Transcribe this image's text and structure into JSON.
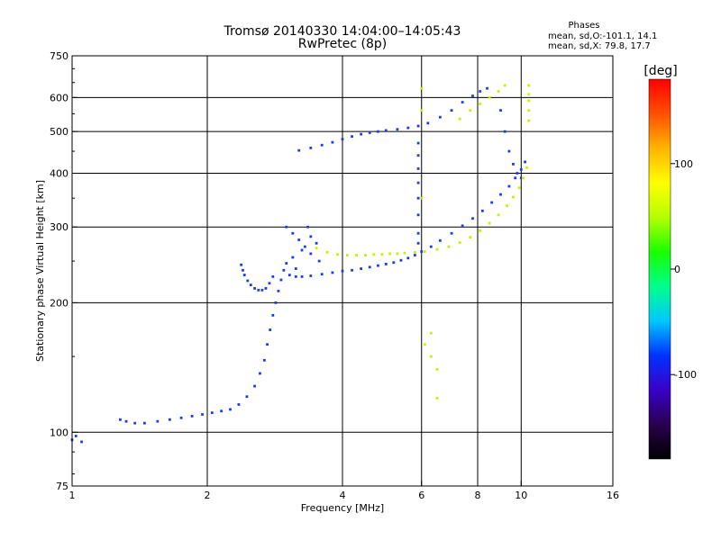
{
  "chart_data": {
    "type": "scatter",
    "title": "Tromsø 20140330 14:04:00–14:05:43",
    "subtitle": "RwPretec (8p)",
    "xlabel": "Frequency [MHz]",
    "ylabel": "Stationary phase Virtual Height [km]",
    "xscale": "log",
    "yscale": "log",
    "xlim": [
      1,
      16
    ],
    "ylim": [
      75,
      750
    ],
    "xticks": [
      1,
      2,
      4,
      6,
      8,
      10,
      16
    ],
    "xtick_labels": [
      "1",
      "2",
      "4",
      "6",
      "8",
      "10",
      "16"
    ],
    "yticks": [
      75,
      100,
      200,
      300,
      400,
      500,
      600,
      750
    ],
    "ytick_labels": [
      "75",
      "100",
      "200",
      "300",
      "400",
      "500",
      "600",
      "750"
    ],
    "grid": true,
    "phase_stats": {
      "heading": "Phases",
      "line_o": "mean, sd,O:-101.1, 14.1",
      "line_x": "mean, sd,X:  79.8, 17.7"
    },
    "colorbar": {
      "label": "[deg]",
      "range": [
        -180,
        180
      ],
      "ticks": [
        100,
        0,
        -100
      ],
      "tick_labels": [
        "100",
        "0",
        "-100"
      ],
      "colormap": [
        "#000000",
        "#2a0050",
        "#3a00c8",
        "#0032ff",
        "#00c8ff",
        "#00ff8c",
        "#18ff00",
        "#b4ff00",
        "#ffff00",
        "#ffb400",
        "#ff5000",
        "#ff0000"
      ]
    },
    "series": [
      {
        "color": "#1a3cf0",
        "phase_mean": -101.1,
        "segments": [
          {
            "x": [
              1.0,
              1.02,
              1.05
            ],
            "y": [
              96,
              98,
              95
            ]
          },
          {
            "x": [
              1.28,
              1.32,
              1.38,
              1.45,
              1.55,
              1.65,
              1.75,
              1.85,
              1.95,
              2.05,
              2.15,
              2.25,
              2.35,
              2.45,
              2.55,
              2.62,
              2.68,
              2.72,
              2.76,
              2.8,
              2.84,
              2.88,
              2.92,
              2.96,
              3.0
            ],
            "y": [
              107,
              106,
              105,
              105,
              106,
              107,
              108,
              109,
              110,
              111,
              112,
              113,
              116,
              121,
              128,
              137,
              147,
              160,
              173,
              187,
              200,
              213,
              226,
              238,
              247
            ]
          },
          {
            "x": [
              2.38,
              2.4,
              2.42,
              2.46,
              2.5,
              2.55,
              2.6,
              2.65,
              2.7,
              2.75,
              2.8
            ],
            "y": [
              245,
              238,
              232,
              225,
              220,
              216,
              214,
              214,
              216,
              222,
              230
            ]
          },
          {
            "x": [
              3.05,
              3.15,
              3.25,
              3.4,
              3.6,
              3.8,
              4.0,
              4.2,
              4.4,
              4.6,
              4.8,
              5.0,
              5.2,
              5.4,
              5.6,
              5.8,
              6.0,
              6.3,
              6.6,
              7.0,
              7.4,
              7.8,
              8.2,
              8.6,
              9.0,
              9.4,
              9.7,
              10.0,
              10.2
            ],
            "y": [
              232,
              230,
              230,
              231,
              233,
              235,
              237,
              238,
              240,
              242,
              244,
              246,
              248,
              251,
              254,
              258,
              263,
              270,
              279,
              290,
              302,
              314,
              327,
              342,
              357,
              373,
              390,
              408,
              425
            ]
          },
          {
            "x": [
              3.2,
              3.4,
              3.6,
              3.8,
              4.0,
              4.2,
              4.4,
              4.6,
              4.8,
              5.0,
              5.3,
              5.6,
              5.9,
              6.2,
              6.6,
              7.0,
              7.4,
              7.8,
              8.1,
              8.4
            ],
            "y": [
              452,
              458,
              465,
              472,
              480,
              487,
              493,
              497,
              500,
              503,
              506,
              510,
              515,
              523,
              540,
              560,
              585,
              605,
              620,
              630
            ]
          },
          {
            "x": [
              9.0,
              9.2,
              9.4,
              9.6,
              9.8,
              10.0
            ],
            "y": [
              560,
              500,
              450,
              420,
              400,
              390
            ]
          },
          {
            "x": [
              5.9,
              5.9,
              5.9,
              5.9,
              5.9,
              5.9,
              5.9,
              5.9
            ],
            "y": [
              470,
              440,
              410,
              380,
              350,
              320,
              290,
              275
            ]
          },
          {
            "x": [
              3.0,
              3.1,
              3.2,
              3.3,
              3.4,
              3.5,
              3.1,
              3.25,
              3.4,
              3.55,
              3.15,
              3.35
            ],
            "y": [
              300,
              290,
              280,
              270,
              260,
              275,
              255,
              265,
              285,
              250,
              240,
              300
            ]
          }
        ]
      },
      {
        "color": "#c8f000",
        "phase_mean": 79.8,
        "segments": [
          {
            "x": [
              3.5,
              3.7,
              3.9,
              4.1,
              4.3,
              4.5,
              4.7,
              4.9,
              5.1,
              5.3,
              5.5,
              5.8,
              6.1,
              6.5,
              6.9,
              7.3,
              7.7,
              8.1,
              8.5,
              8.9,
              9.3,
              9.6,
              9.9,
              10.1,
              10.3
            ],
            "y": [
              268,
              262,
              259,
              258,
              258,
              258,
              259,
              259,
              260,
              260,
              261,
              262,
              263,
              266,
              270,
              276,
              284,
              294,
              306,
              320,
              336,
              352,
              370,
              390,
              412
            ]
          },
          {
            "x": [
              7.3,
              7.7,
              8.1,
              8.5,
              8.9,
              9.2
            ],
            "y": [
              535,
              560,
              580,
              600,
              620,
              640
            ]
          },
          {
            "x": [
              10.4,
              10.4,
              10.4,
              10.4,
              10.4
            ],
            "y": [
              640,
              610,
              590,
              560,
              530
            ]
          },
          {
            "x": [
              6.0,
              6.0,
              6.0,
              6.1,
              6.3,
              6.3,
              6.5,
              6.5
            ],
            "y": [
              630,
              560,
              350,
              160,
              170,
              150,
              140,
              120
            ]
          }
        ]
      }
    ]
  }
}
